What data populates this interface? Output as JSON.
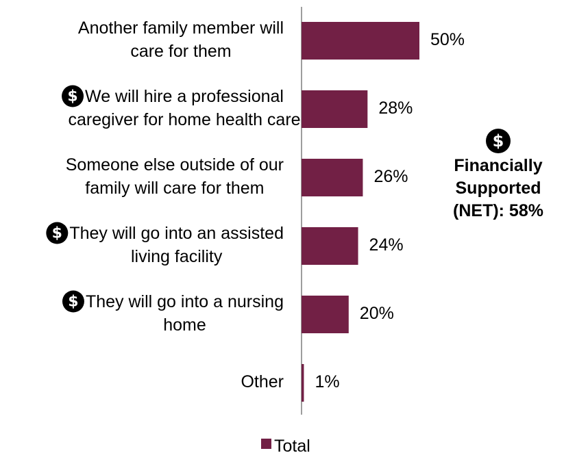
{
  "chart_data": {
    "type": "bar",
    "orientation": "horizontal",
    "categories": [
      {
        "lines": [
          "Another family member will",
          "care for them"
        ],
        "dollar": false
      },
      {
        "lines": [
          "We will hire a professional",
          "caregiver for home health care"
        ],
        "dollar": true
      },
      {
        "lines": [
          "Someone else outside of our",
          "family will care for them"
        ],
        "dollar": false
      },
      {
        "lines": [
          "They will go into an assisted",
          "living facility"
        ],
        "dollar": true
      },
      {
        "lines": [
          "They will go into a nursing",
          "home"
        ],
        "dollar": true
      },
      {
        "lines": [
          "Other"
        ],
        "dollar": false
      }
    ],
    "series": [
      {
        "name": "Total",
        "values": [
          50,
          28,
          26,
          24,
          20,
          1
        ],
        "color": "#722045"
      }
    ],
    "value_format": "{v}%",
    "xlim": [
      0,
      100
    ],
    "grid": false,
    "legend": {
      "position": "bottom",
      "entries": [
        "Total"
      ]
    },
    "annotation": {
      "icon": "dollar-icon",
      "lines": [
        "Financially",
        "Supported",
        "(NET): 58%"
      ]
    }
  }
}
